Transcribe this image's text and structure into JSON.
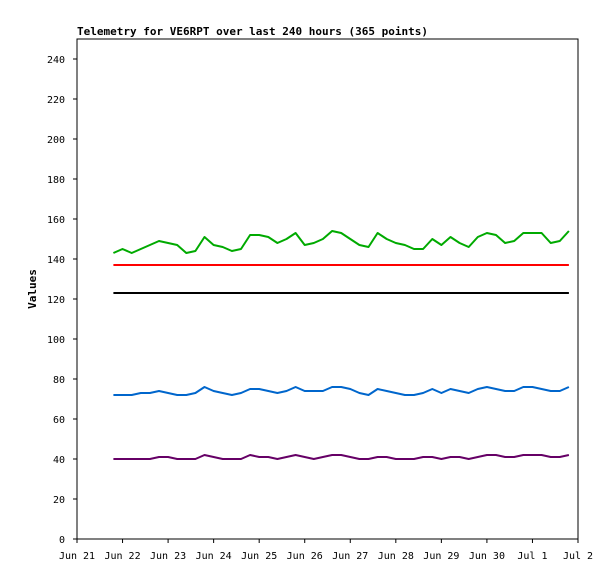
{
  "chart_data": {
    "type": "line",
    "title": "Telemetry for VE6RPT over last 240 hours (365 points)",
    "xlabel": "",
    "ylabel": "Values",
    "ylim": [
      0,
      250
    ],
    "xlim": [
      "Jun 21",
      "Jul 2"
    ],
    "x_ticks": [
      "Jun 21",
      "Jun 22",
      "Jun 23",
      "Jun 24",
      "Jun 25",
      "Jun 26",
      "Jun 27",
      "Jun 28",
      "Jun 29",
      "Jun 30",
      "Jul 1",
      "Jul 2"
    ],
    "y_ticks": [
      0,
      20,
      40,
      60,
      80,
      100,
      120,
      140,
      160,
      180,
      200,
      220,
      240
    ],
    "grid": false,
    "legend": "none",
    "x_unit": "days",
    "series": [
      {
        "color": "#00aa00",
        "x": [
          0.8,
          1.0,
          1.2,
          1.4,
          1.6,
          1.8,
          2.0,
          2.2,
          2.4,
          2.6,
          2.8,
          3.0,
          3.2,
          3.4,
          3.6,
          3.8,
          4.0,
          4.2,
          4.4,
          4.6,
          4.8,
          5.0,
          5.2,
          5.4,
          5.6,
          5.8,
          6.0,
          6.2,
          6.4,
          6.6,
          6.8,
          7.0,
          7.2,
          7.4,
          7.6,
          7.8,
          8.0,
          8.2,
          8.4,
          8.6,
          8.8,
          9.0,
          9.2,
          9.4,
          9.6,
          9.8,
          10.0,
          10.2,
          10.4,
          10.6,
          10.8
        ],
        "values": [
          143,
          145,
          143,
          145,
          147,
          149,
          148,
          147,
          143,
          144,
          151,
          147,
          146,
          144,
          145,
          152,
          152,
          151,
          148,
          150,
          153,
          147,
          148,
          150,
          154,
          153,
          150,
          147,
          146,
          153,
          150,
          148,
          147,
          145,
          145,
          150,
          147,
          151,
          148,
          146,
          151,
          153,
          152,
          148,
          149,
          153,
          153,
          153,
          148,
          149,
          154
        ]
      },
      {
        "color": "#ff0000",
        "x": [
          0.8,
          10.8
        ],
        "values": [
          137,
          137
        ]
      },
      {
        "color": "#000000",
        "x": [
          0.8,
          10.8
        ],
        "values": [
          123,
          123
        ]
      },
      {
        "color": "#0066cc",
        "x": [
          0.8,
          1.0,
          1.2,
          1.4,
          1.6,
          1.8,
          2.0,
          2.2,
          2.4,
          2.6,
          2.8,
          3.0,
          3.2,
          3.4,
          3.6,
          3.8,
          4.0,
          4.2,
          4.4,
          4.6,
          4.8,
          5.0,
          5.2,
          5.4,
          5.6,
          5.8,
          6.0,
          6.2,
          6.4,
          6.6,
          6.8,
          7.0,
          7.2,
          7.4,
          7.6,
          7.8,
          8.0,
          8.2,
          8.4,
          8.6,
          8.8,
          9.0,
          9.2,
          9.4,
          9.6,
          9.8,
          10.0,
          10.2,
          10.4,
          10.6,
          10.8
        ],
        "values": [
          72,
          72,
          72,
          73,
          73,
          74,
          73,
          72,
          72,
          73,
          76,
          74,
          73,
          72,
          73,
          75,
          75,
          74,
          73,
          74,
          76,
          74,
          74,
          74,
          76,
          76,
          75,
          73,
          72,
          75,
          74,
          73,
          72,
          72,
          73,
          75,
          73,
          75,
          74,
          73,
          75,
          76,
          75,
          74,
          74,
          76,
          76,
          75,
          74,
          74,
          76
        ]
      },
      {
        "color": "#660066",
        "x": [
          0.8,
          1.0,
          1.2,
          1.4,
          1.6,
          1.8,
          2.0,
          2.2,
          2.4,
          2.6,
          2.8,
          3.0,
          3.2,
          3.4,
          3.6,
          3.8,
          4.0,
          4.2,
          4.4,
          4.6,
          4.8,
          5.0,
          5.2,
          5.4,
          5.6,
          5.8,
          6.0,
          6.2,
          6.4,
          6.6,
          6.8,
          7.0,
          7.2,
          7.4,
          7.6,
          7.8,
          8.0,
          8.2,
          8.4,
          8.6,
          8.8,
          9.0,
          9.2,
          9.4,
          9.6,
          9.8,
          10.0,
          10.2,
          10.4,
          10.6,
          10.8
        ],
        "values": [
          40,
          40,
          40,
          40,
          40,
          41,
          41,
          40,
          40,
          40,
          42,
          41,
          40,
          40,
          40,
          42,
          41,
          41,
          40,
          41,
          42,
          41,
          40,
          41,
          42,
          42,
          41,
          40,
          40,
          41,
          41,
          40,
          40,
          40,
          41,
          41,
          40,
          41,
          41,
          40,
          41,
          42,
          42,
          41,
          41,
          42,
          42,
          42,
          41,
          41,
          42
        ]
      }
    ]
  }
}
